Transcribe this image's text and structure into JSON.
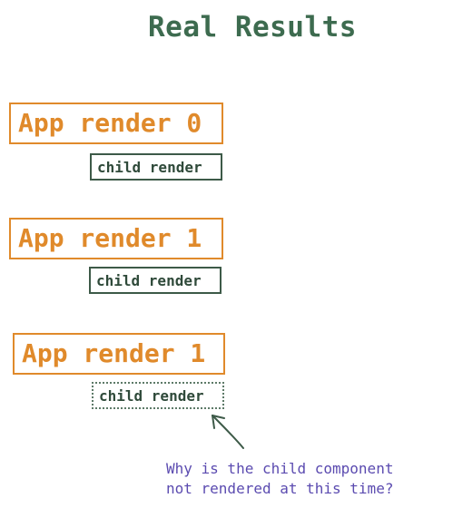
{
  "title": "Real Results",
  "steps": [
    {
      "app_label": "App render 0",
      "child_label": "child render"
    },
    {
      "app_label": "App render 1",
      "child_label": "child render"
    },
    {
      "app_label": "App render 1",
      "child_label": "child render"
    }
  ],
  "note": {
    "line1": "Why is the child component",
    "line2": "not rendered at this time?"
  },
  "colors": {
    "title": "#3d6b4f",
    "app_box": "#e08a2b",
    "child_box": "#3d5a48",
    "note": "#5b4bb0",
    "arrow": "#3d5a48"
  }
}
